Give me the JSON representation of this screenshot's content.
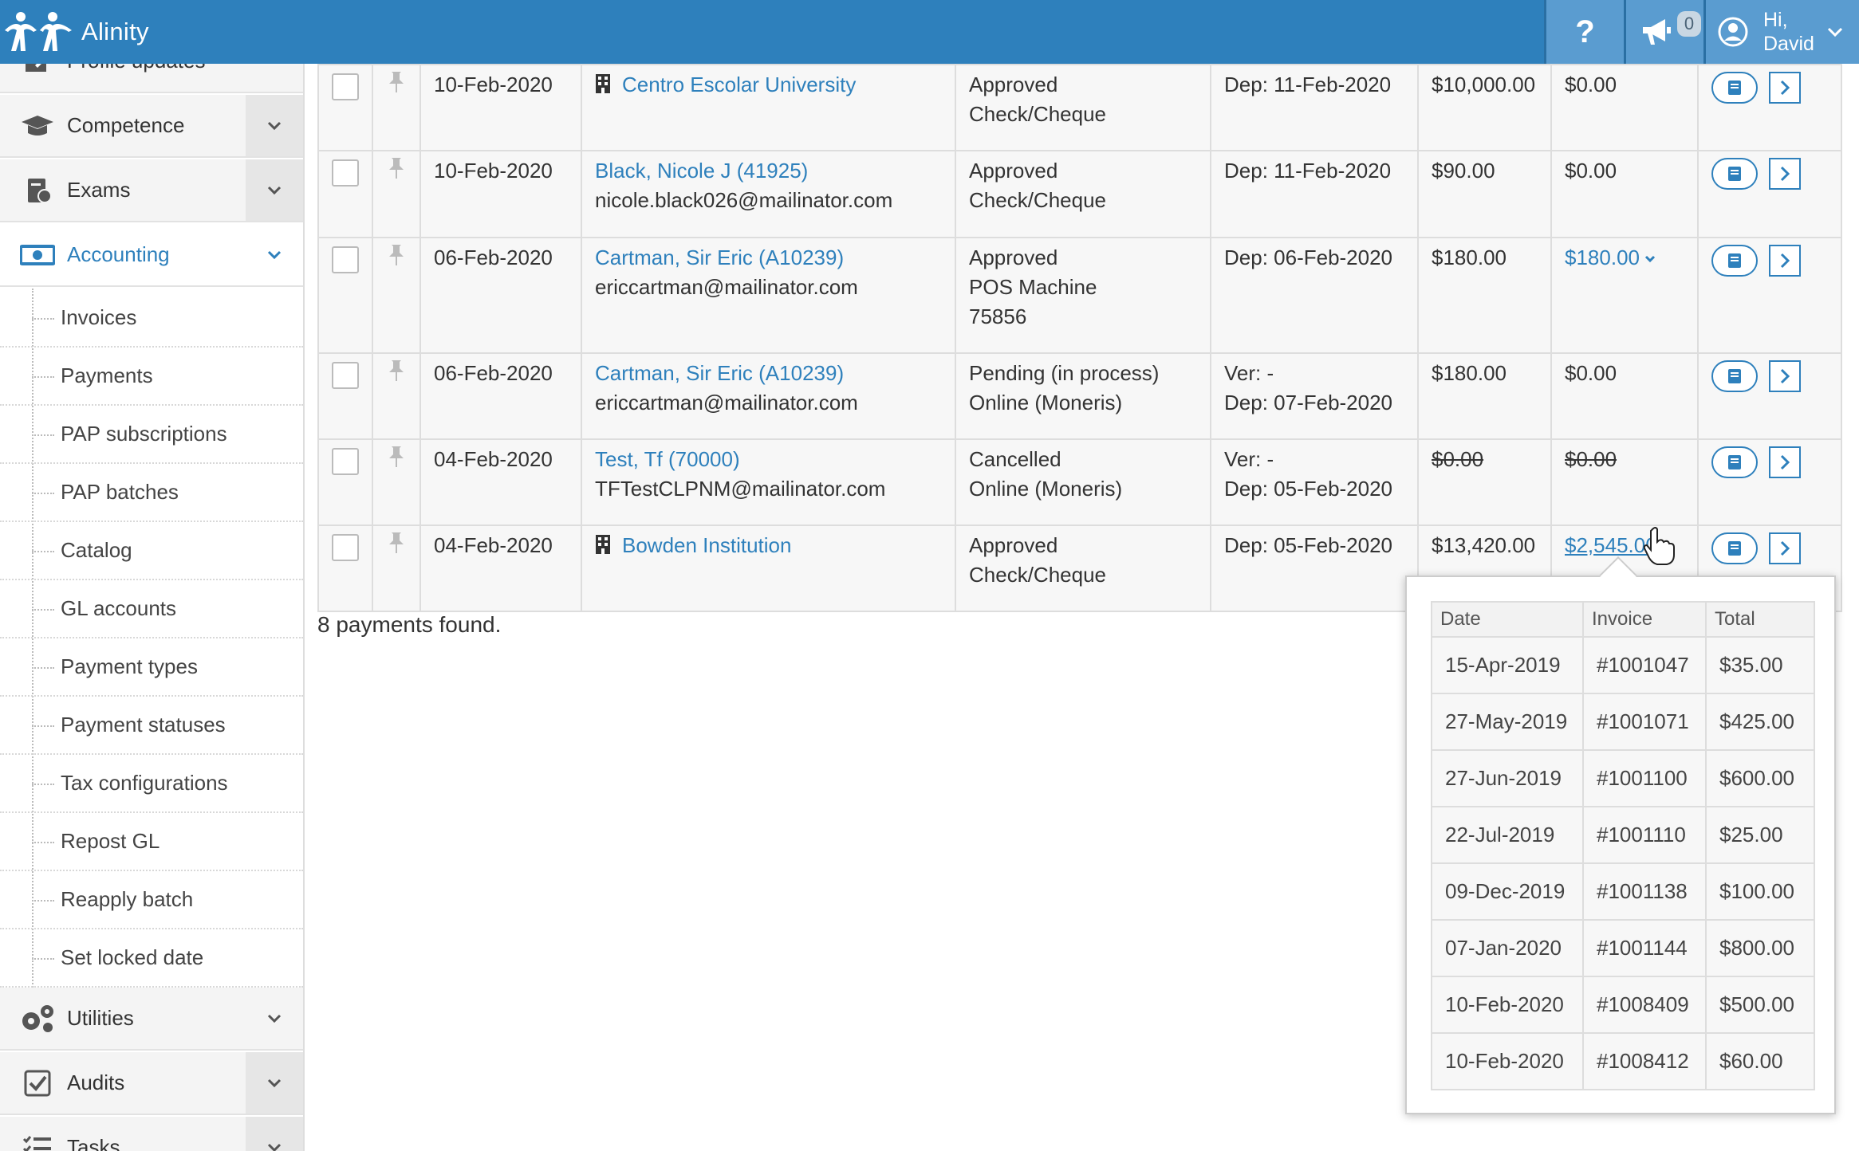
{
  "app": {
    "name": "Alinity"
  },
  "header": {
    "help_label": "?",
    "notification_count": "0",
    "greeting": "Hi,",
    "user_name": "David"
  },
  "sidebar": {
    "partial_item": "Profile updates",
    "items": [
      {
        "label": "Competence",
        "icon": "graduation-cap-icon"
      },
      {
        "label": "Exams",
        "icon": "exam-icon"
      },
      {
        "label": "Accounting",
        "icon": "money-icon",
        "active": true
      }
    ],
    "subitems": [
      "Invoices",
      "Payments",
      "PAP subscriptions",
      "PAP batches",
      "Catalog",
      "GL accounts",
      "Payment types",
      "Payment statuses",
      "Tax configurations",
      "Repost GL",
      "Reapply batch",
      "Set locked date"
    ],
    "bottom_items": [
      {
        "label": "Utilities",
        "icon": "gears-icon"
      },
      {
        "label": "Audits",
        "icon": "checkbox-icon"
      },
      {
        "label": "Tasks",
        "icon": "tasks-icon"
      }
    ]
  },
  "payments": {
    "rows": [
      {
        "date": "10-Feb-2020",
        "payer": "Centro Escolar University",
        "org": true,
        "email": "",
        "status": "Approved",
        "method": "Check/Cheque",
        "ref": "",
        "ver": "",
        "dep": "Dep: 11-Feb-2020",
        "amount": "$10,000.00",
        "applied": "$0.00"
      },
      {
        "date": "10-Feb-2020",
        "payer": "Black, Nicole J (41925)",
        "org": false,
        "email": "nicole.black026@mailinator.com",
        "status": "Approved",
        "method": "Check/Cheque",
        "ref": "",
        "ver": "",
        "dep": "Dep: 11-Feb-2020",
        "amount": "$90.00",
        "applied": "$0.00"
      },
      {
        "date": "06-Feb-2020",
        "payer": "Cartman, Sir Eric (A10239)",
        "org": false,
        "email": "ericcartman@mailinator.com",
        "status": "Approved",
        "method": "POS Machine",
        "ref": "75856",
        "ver": "",
        "dep": "Dep: 06-Feb-2020",
        "amount": "$180.00",
        "applied": "$180.00"
      },
      {
        "date": "06-Feb-2020",
        "payer": "Cartman, Sir Eric (A10239)",
        "org": false,
        "email": "ericcartman@mailinator.com",
        "status": "Pending (in process)",
        "method": "Online (Moneris)",
        "ref": "",
        "ver": "Ver: -",
        "dep": "Dep: 07-Feb-2020",
        "amount": "$180.00",
        "applied": "$0.00"
      },
      {
        "date": "04-Feb-2020",
        "payer": "Test, Tf (70000)",
        "org": false,
        "email": "TFTestCLPNM@mailinator.com",
        "status": "Cancelled",
        "method": "Online (Moneris)",
        "ref": "",
        "ver": "Ver: -",
        "dep": "Dep: 05-Feb-2020",
        "amount": "$0.00",
        "applied": "$0.00"
      },
      {
        "date": "04-Feb-2020",
        "payer": "Bowden Institution",
        "org": true,
        "email": "",
        "status": "Approved",
        "method": "Check/Cheque",
        "ref": "",
        "ver": "",
        "dep": "Dep: 05-Feb-2020",
        "amount": "$13,420.00",
        "applied": "$2,545.00"
      }
    ],
    "found_text": "8 payments found."
  },
  "popover": {
    "headers": [
      "Date",
      "Invoice",
      "Total"
    ],
    "rows": [
      [
        "15-Apr-2019",
        "#1001047",
        "$35.00"
      ],
      [
        "27-May-2019",
        "#1001071",
        "$425.00"
      ],
      [
        "27-Jun-2019",
        "#1001100",
        "$600.00"
      ],
      [
        "22-Jul-2019",
        "#1001110",
        "$25.00"
      ],
      [
        "09-Dec-2019",
        "#1001138",
        "$100.00"
      ],
      [
        "07-Jan-2020",
        "#1001144",
        "$800.00"
      ],
      [
        "10-Feb-2020",
        "#1008409",
        "$500.00"
      ],
      [
        "10-Feb-2020",
        "#1008412",
        "$60.00"
      ]
    ]
  },
  "colors": {
    "brand": "#2e80bc",
    "accent_orange": "#e67e22"
  }
}
